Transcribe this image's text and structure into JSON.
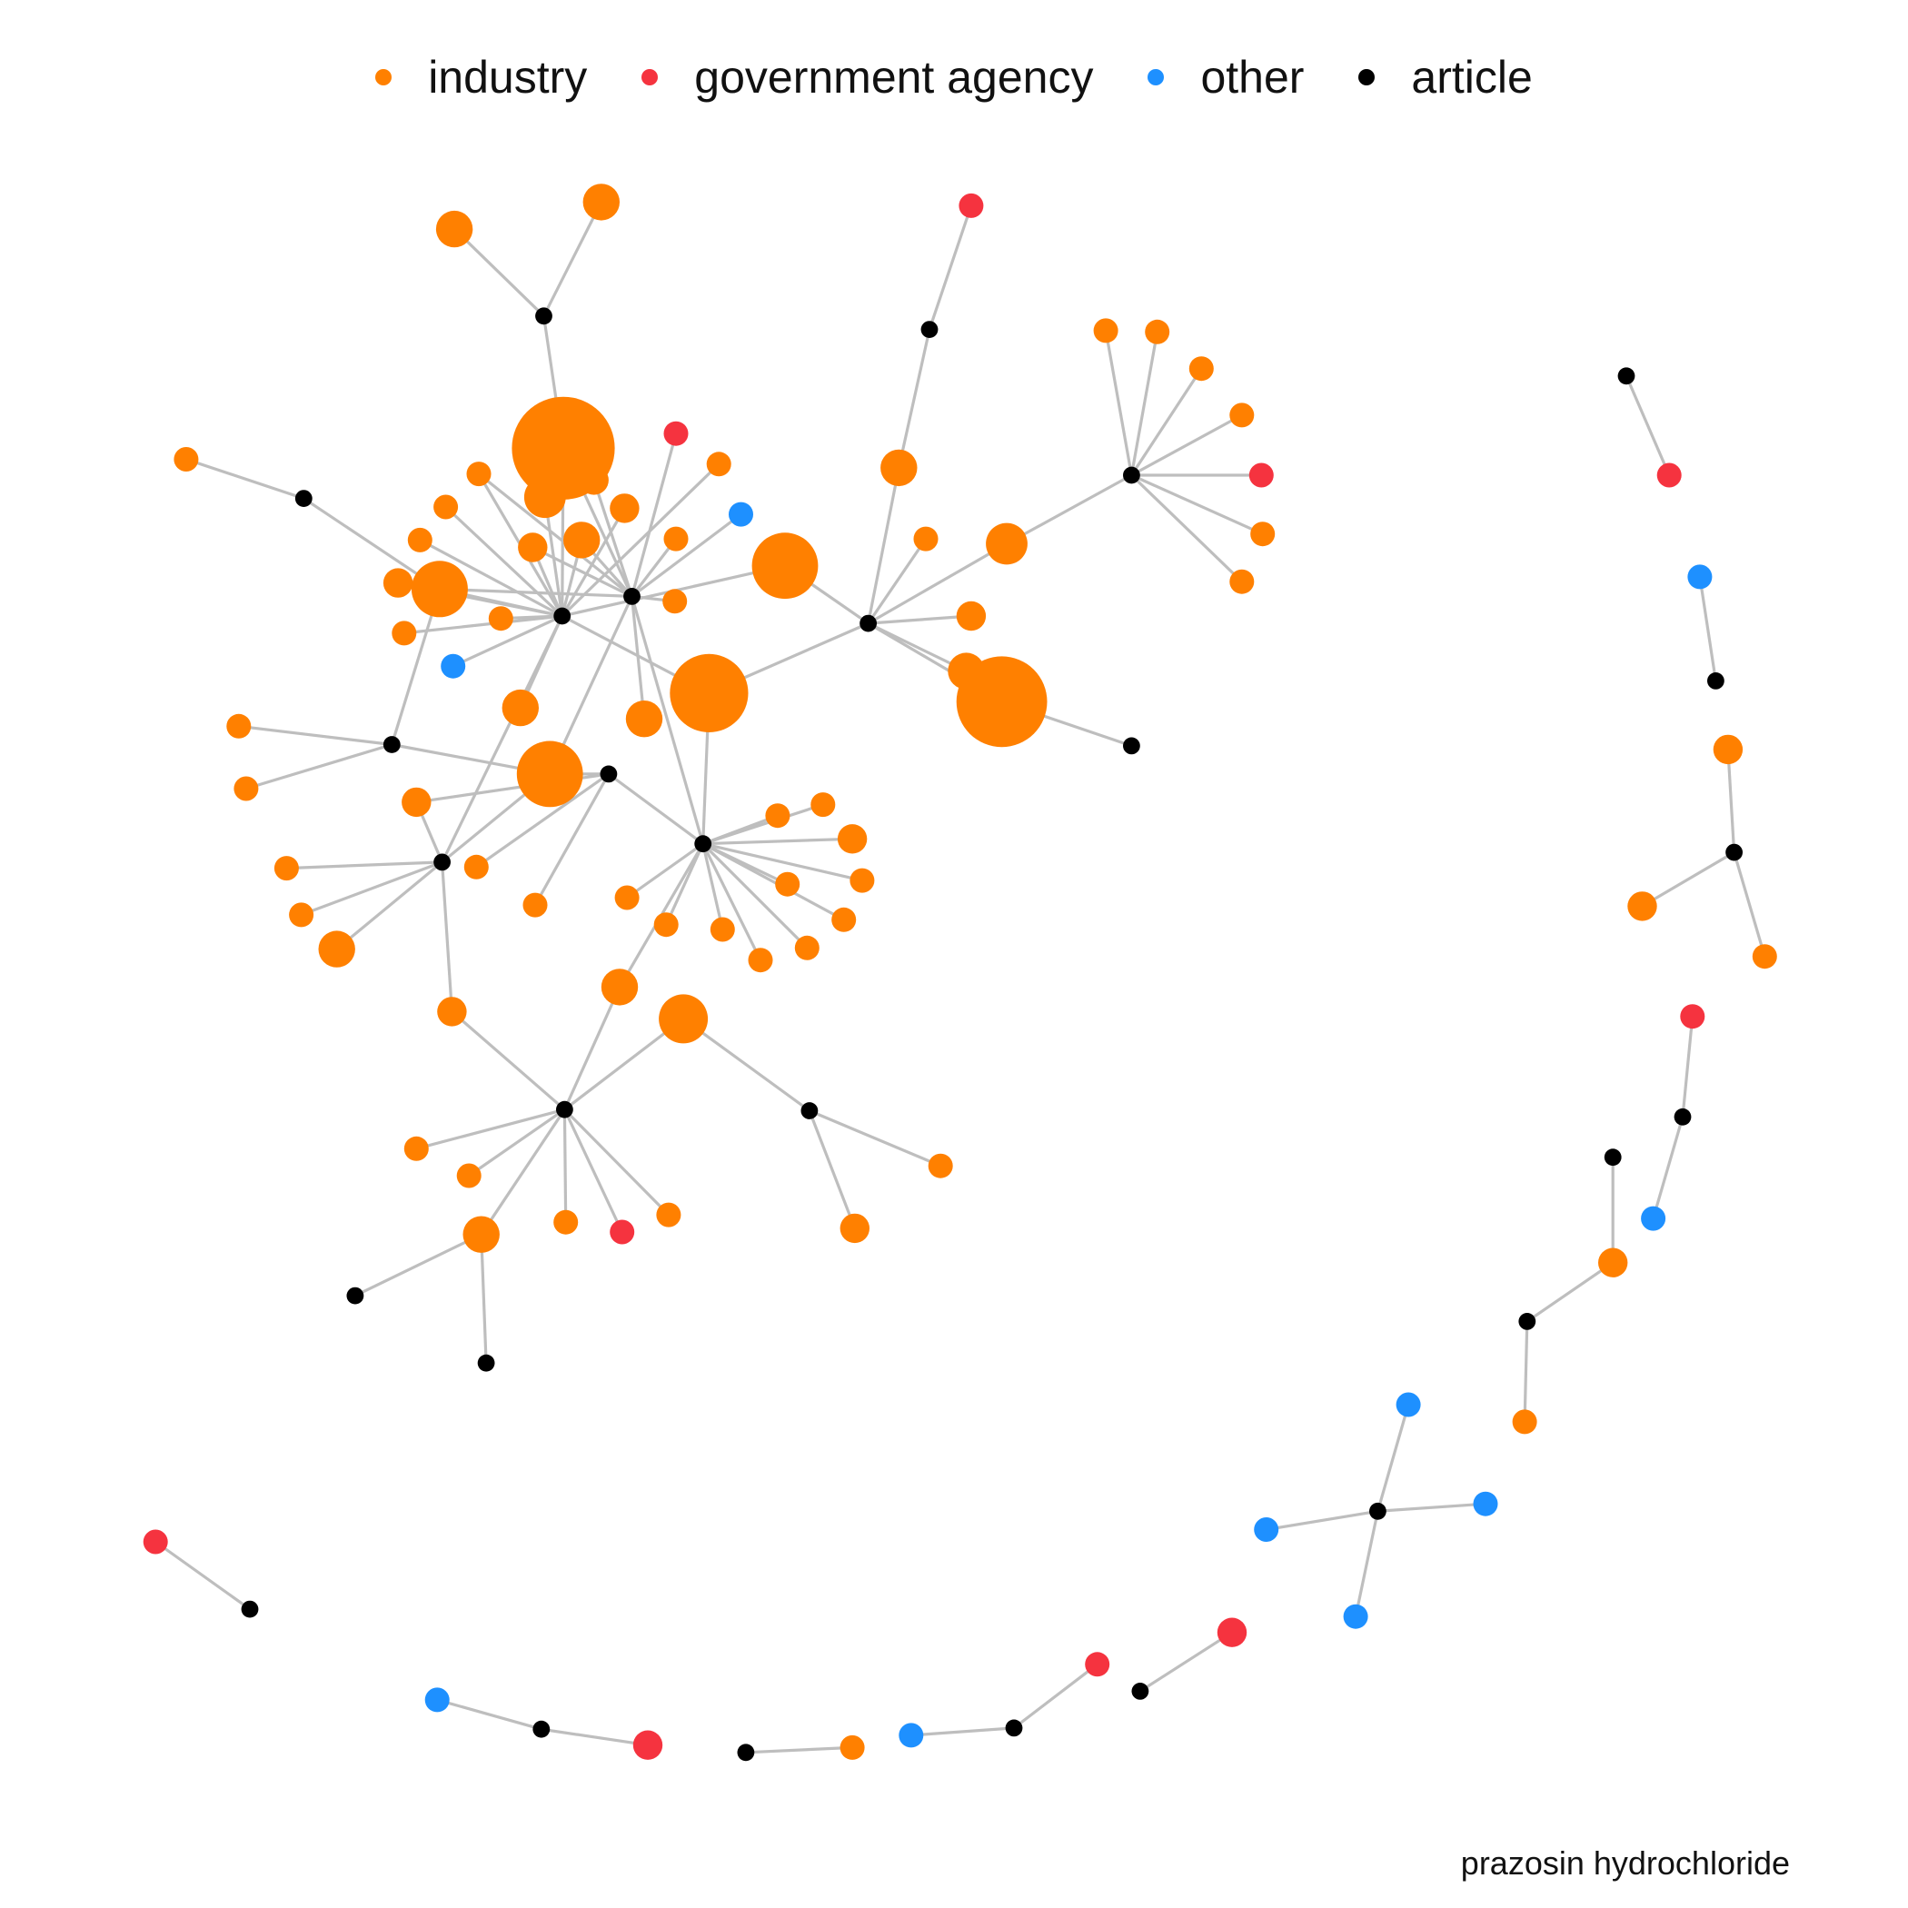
{
  "legend": {
    "items": [
      {
        "key": "industry",
        "label": "industry",
        "color": "#FF8000"
      },
      {
        "key": "gov",
        "label": "government agency",
        "color": "#F5333F"
      },
      {
        "key": "other",
        "label": "other",
        "color": "#1E90FF"
      },
      {
        "key": "article",
        "label": "article",
        "color": "#000000"
      }
    ]
  },
  "caption": "prazosin hydrochloride",
  "edge_color": "#BEBEBE"
}
